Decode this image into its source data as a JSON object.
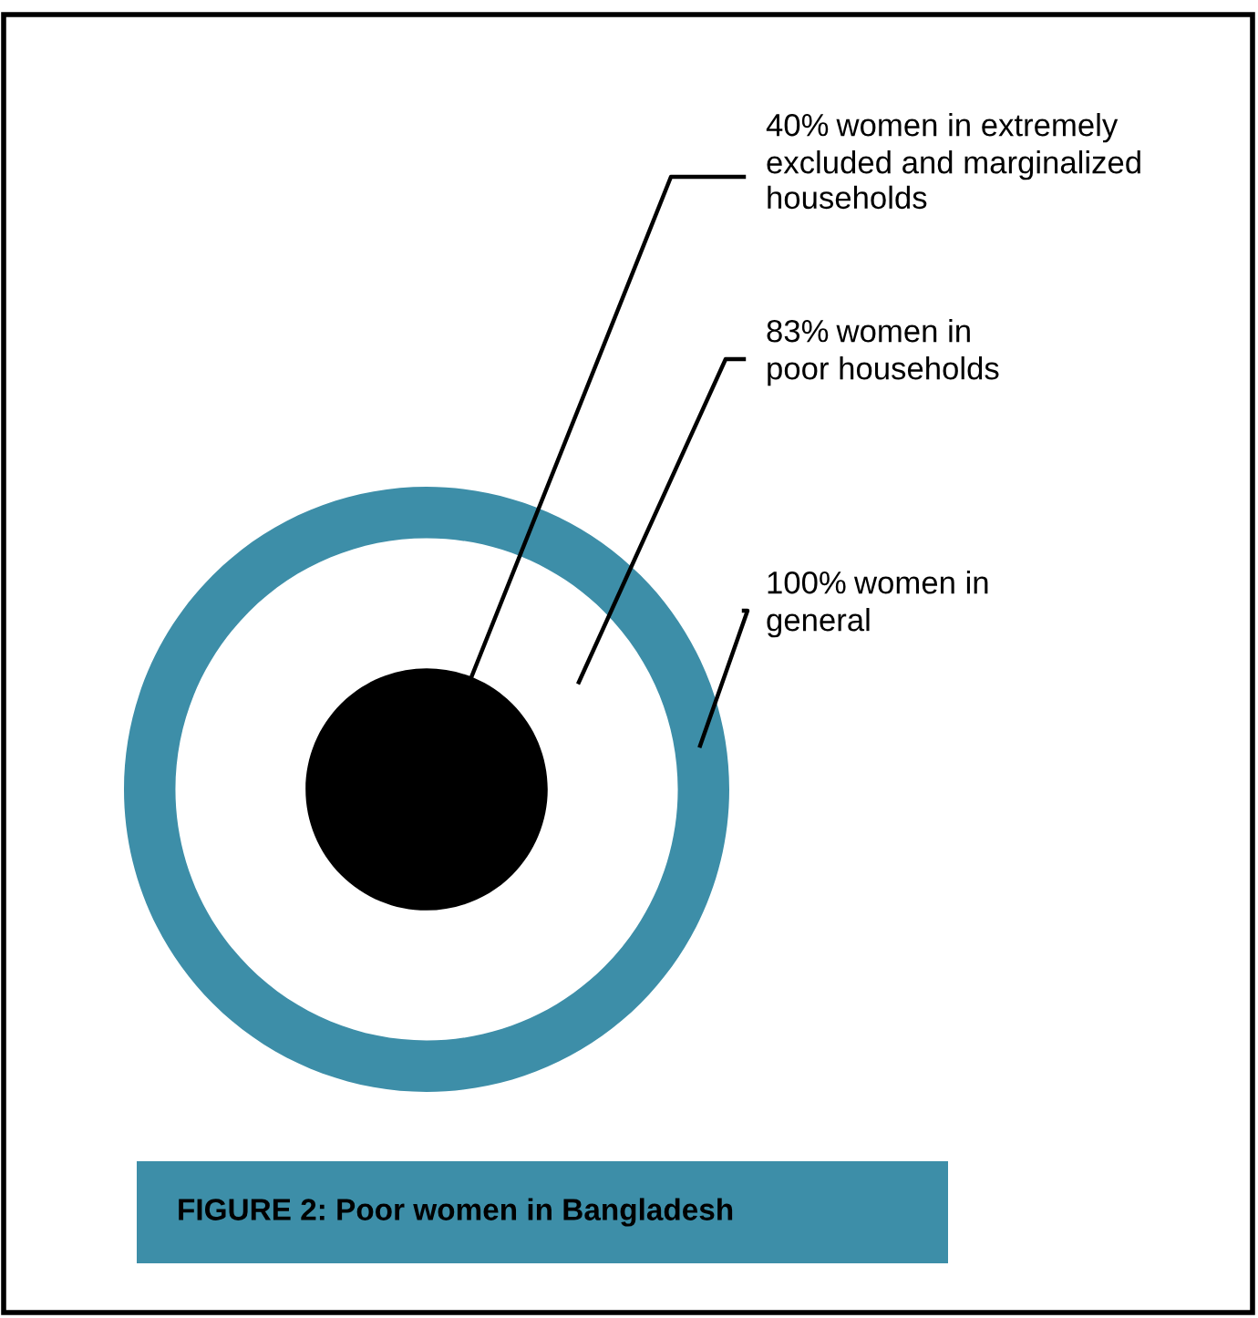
{
  "chart_data": {
    "type": "other",
    "title": "FIGURE 2: Poor women in Bangladesh",
    "categories": [
      "women in\ngeneral",
      "women in\npoor households",
      "women in extremely\nexcluded and marginalized\nhouseholds"
    ],
    "values": [
      100,
      83,
      40
    ],
    "colors": [
      "#3d8ea8",
      "#ffffff",
      "#000000"
    ],
    "value_labels": [
      "100%",
      "83%",
      "40%"
    ]
  }
}
